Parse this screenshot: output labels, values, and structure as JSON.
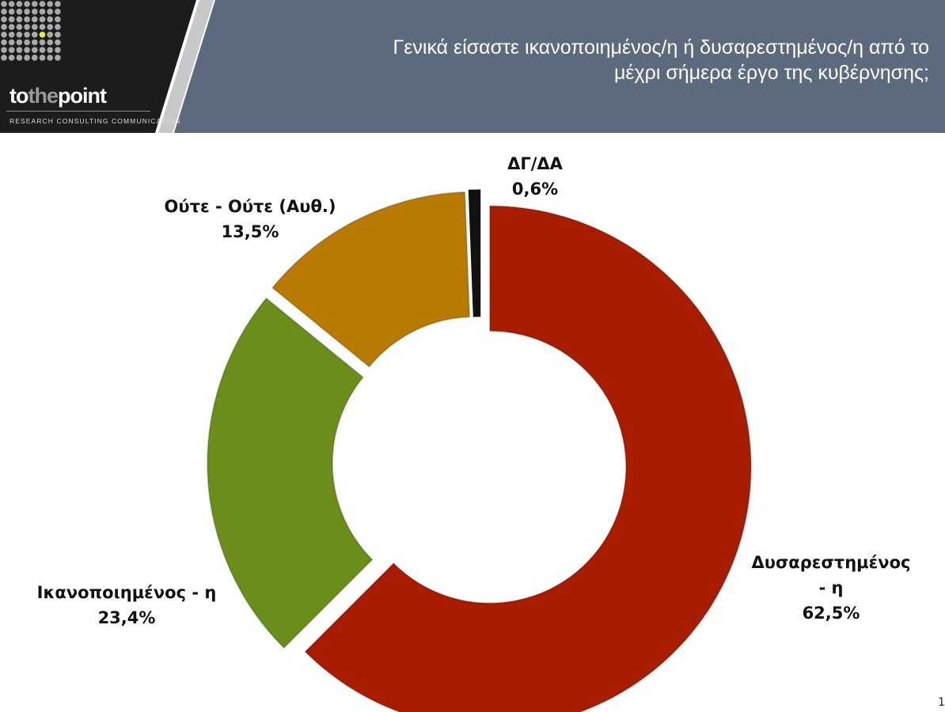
{
  "header": {
    "brand": {
      "part1": "to",
      "part2": "the",
      "part3": "point",
      "tagline": "RESEARCH  CONSULTING  COMMUNICATION"
    },
    "title_line1": "Γενικά είσαστε ικανοποιημένος/η ή δυσαρεστημένος/η από το",
    "title_line2": "μέχρι σήμερα έργο της κυβέρνησης;",
    "colors": {
      "dark": "#1c1c1c",
      "band": "#5b6a7c",
      "accent_dot": "#e6ef3a"
    }
  },
  "chart_data": {
    "type": "pie",
    "subtype": "doughnut-exploded",
    "title": "",
    "slices": [
      {
        "label": "Δυσαρεστημένος - η",
        "label_lines": [
          "Δυσαρεστημένος",
          "- η"
        ],
        "value": 62.5,
        "value_label": "62,5%",
        "color": "#a81c00"
      },
      {
        "label": "Ικανοποιημένος - η",
        "label_lines": [
          "Ικανοποιημένος - η"
        ],
        "value": 23.4,
        "value_label": "23,4%",
        "color": "#6b8e1b"
      },
      {
        "label": "Ούτε - Ούτε (Αυθ.)",
        "label_lines": [
          "Ούτε - Ούτε (Αυθ.)"
        ],
        "value": 13.5,
        "value_label": "13,5%",
        "color": "#b87b00"
      },
      {
        "label": "ΔΓ/ΔΑ",
        "label_lines": [
          "ΔΓ/ΔΑ"
        ],
        "value": 0.6,
        "value_label": "0,6%",
        "color": "#111111"
      }
    ]
  },
  "page_number": "1"
}
